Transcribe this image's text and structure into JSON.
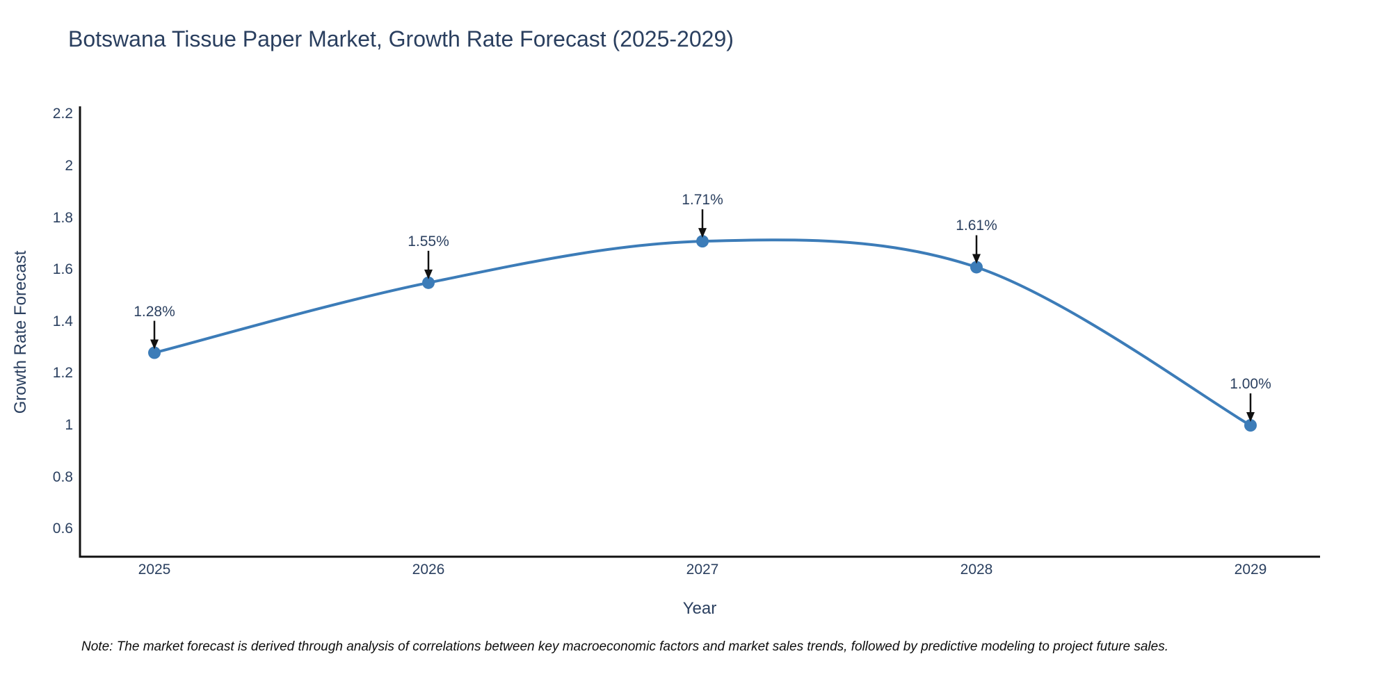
{
  "note": "Note: The market forecast is derived through analysis of correlations between key macroeconomic factors and market sales trends, followed by predictive modeling to project future sales.",
  "chart_data": {
    "type": "line",
    "title": "Botswana Tissue Paper Market, Growth Rate Forecast (2025-2029)",
    "xlabel": "Year",
    "ylabel": "Growth Rate Forecast",
    "categories": [
      "2025",
      "2026",
      "2027",
      "2028",
      "2029"
    ],
    "x": [
      2025,
      2026,
      2027,
      2028,
      2029
    ],
    "values": [
      1.28,
      1.55,
      1.71,
      1.61,
      1.0
    ],
    "point_labels": [
      "1.28%",
      "1.55%",
      "1.71%",
      "1.61%",
      "1.00%"
    ],
    "yticks": [
      "2.2",
      "2",
      "1.8",
      "1.6",
      "1.4",
      "1.2",
      "1",
      "0.8",
      "0.6"
    ],
    "ylim": [
      0.49,
      2.23
    ],
    "grid": false,
    "legend": "none",
    "line_shape": "spline",
    "annotation_style": "value label with down arrow to marker",
    "colors": {
      "line": "#3c7cb8",
      "marker": "#3c7cb8",
      "axis": "#111111",
      "arrow": "#111111",
      "text": "#2a3f5f",
      "background": "#ffffff"
    }
  }
}
